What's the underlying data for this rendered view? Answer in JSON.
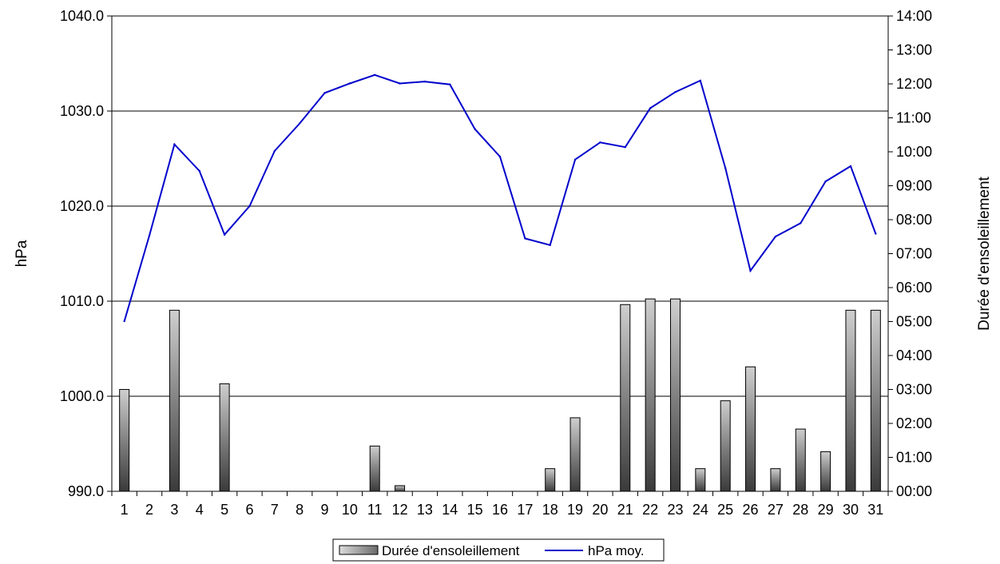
{
  "chart_data": {
    "type": "bar+line",
    "categories": [
      "1",
      "2",
      "3",
      "4",
      "5",
      "6",
      "7",
      "8",
      "9",
      "10",
      "11",
      "12",
      "13",
      "14",
      "15",
      "16",
      "17",
      "18",
      "19",
      "20",
      "21",
      "22",
      "23",
      "24",
      "25",
      "26",
      "27",
      "28",
      "29",
      "30",
      "31"
    ],
    "series": [
      {
        "name": "Durée d'ensoleillement",
        "type": "bar",
        "axis": "right",
        "unit": "hh:mm",
        "values": [
          "03:00",
          "00:00",
          "05:20",
          "00:00",
          "03:10",
          "00:00",
          "00:00",
          "00:00",
          "00:00",
          "00:00",
          "01:20",
          "00:10",
          "00:00",
          "00:00",
          "00:00",
          "00:00",
          "00:00",
          "00:40",
          "02:10",
          "00:00",
          "05:30",
          "05:40",
          "05:40",
          "00:40",
          "02:40",
          "03:40",
          "00:40",
          "01:50",
          "01:10",
          "05:20",
          "05:20"
        ]
      },
      {
        "name": "hPa moy.",
        "type": "line",
        "axis": "left",
        "color": "#0000cc",
        "values": [
          1007.9,
          1016.9,
          1026.5,
          1023.7,
          1017.0,
          1020.0,
          1025.8,
          1028.7,
          1031.9,
          1032.9,
          1033.8,
          1032.9,
          1033.1,
          1032.8,
          1028.1,
          1025.2,
          1016.6,
          1015.9,
          1024.9,
          1026.7,
          1026.2,
          1030.3,
          1032.0,
          1033.2,
          1024.0,
          1013.2,
          1016.8,
          1018.2,
          1022.6,
          1024.2,
          1017.1
        ]
      }
    ],
    "y_left": {
      "label": "hPa",
      "min": 990,
      "max": 1040,
      "ticks": [
        "990.0",
        "1000.0",
        "1010.0",
        "1020.0",
        "1030.0",
        "1040.0"
      ]
    },
    "y_right": {
      "label": "Durée d'ensoleillement",
      "min": "00:00",
      "max": "14:00",
      "ticks": [
        "00:00",
        "01:00",
        "02:00",
        "03:00",
        "04:00",
        "05:00",
        "06:00",
        "07:00",
        "08:00",
        "09:00",
        "10:00",
        "11:00",
        "12:00",
        "13:00",
        "14:00"
      ]
    },
    "grid": "horizontal",
    "legend": {
      "position": "bottom",
      "items": [
        "Durée d'ensoleillement",
        "hPa moy."
      ]
    }
  }
}
